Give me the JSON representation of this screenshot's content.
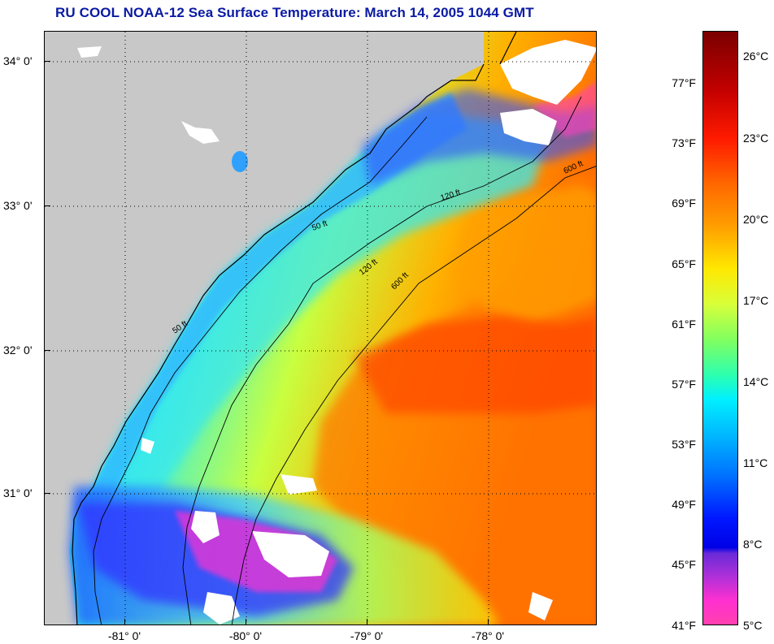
{
  "title": "RU COOL  NOAA-12  Sea Surface Temperature:  March 14, 2005 1044 GMT",
  "map": {
    "lat_labels": [
      "34° 0'",
      "33° 0'",
      "32° 0'",
      "31° 0'"
    ],
    "lon_labels": [
      "-81° 0'",
      "-80° 0'",
      "-79° 0'",
      "-78° 0'"
    ],
    "contours": [
      "50 ft",
      "120 ft",
      "600 ft"
    ]
  },
  "colorbar": {
    "fahrenheit": [
      "77°F",
      "73°F",
      "69°F",
      "65°F",
      "61°F",
      "57°F",
      "53°F",
      "49°F",
      "45°F",
      "41°F"
    ],
    "celsius": [
      "26°C",
      "23°C",
      "20°C",
      "17°C",
      "14°C",
      "11°C",
      "8°C",
      "5°C"
    ]
  },
  "colors": {
    "title": "#0a1aa3",
    "land": "#c8c8c8",
    "cloud": "#ffffff"
  }
}
